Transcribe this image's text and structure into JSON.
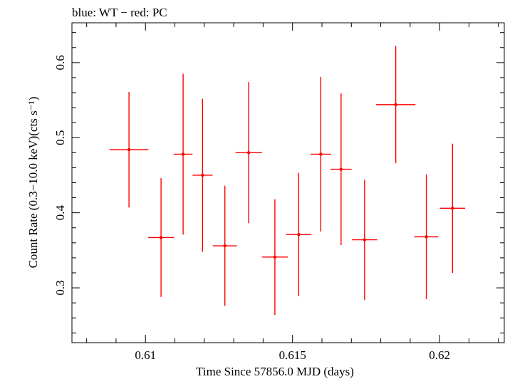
{
  "chart_data": {
    "type": "scatter",
    "title": "blue: WT − red: PC",
    "xlabel": "Time Since 57856.0 MJD (days)",
    "ylabel": "Count Rate (0.3−10.0 keV)(cts s⁻¹)",
    "xlim": [
      0.6075,
      0.6222
    ],
    "ylim": [
      0.227,
      0.653
    ],
    "x_ticks": [
      {
        "value": 0.61,
        "label": "0.61"
      },
      {
        "value": 0.615,
        "label": "0.615"
      },
      {
        "value": 0.62,
        "label": "0.62"
      }
    ],
    "y_ticks": [
      {
        "value": 0.3,
        "label": "0.3"
      },
      {
        "value": 0.4,
        "label": "0.4"
      },
      {
        "value": 0.5,
        "label": "0.5"
      },
      {
        "value": 0.6,
        "label": "0.6"
      }
    ],
    "grid": false,
    "series": [
      {
        "color": "#ff0000",
        "points": [
          {
            "x": 0.60944,
            "xerr": 0.00066,
            "y": 0.484,
            "yerr": 0.077
          },
          {
            "x": 0.61053,
            "xerr": 0.00044,
            "y": 0.367,
            "yerr": 0.079
          },
          {
            "x": 0.61128,
            "xerr": 0.00032,
            "y": 0.478,
            "yerr": 0.107
          },
          {
            "x": 0.61194,
            "xerr": 0.00034,
            "y": 0.45,
            "yerr": 0.102
          },
          {
            "x": 0.6127,
            "xerr": 0.00041,
            "y": 0.356,
            "yerr": 0.08
          },
          {
            "x": 0.61351,
            "xerr": 0.00045,
            "y": 0.48,
            "yerr": 0.094
          },
          {
            "x": 0.6144,
            "xerr": 0.00044,
            "y": 0.341,
            "yerr": 0.077
          },
          {
            "x": 0.61521,
            "xerr": 0.00043,
            "y": 0.371,
            "yerr": 0.082
          },
          {
            "x": 0.61596,
            "xerr": 0.00035,
            "y": 0.478,
            "yerr": 0.103
          },
          {
            "x": 0.61665,
            "xerr": 0.00036,
            "y": 0.458,
            "yerr": 0.101
          },
          {
            "x": 0.61745,
            "xerr": 0.00043,
            "y": 0.364,
            "yerr": 0.08
          },
          {
            "x": 0.61851,
            "xerr": 0.00067,
            "y": 0.544,
            "yerr": 0.078
          },
          {
            "x": 0.61955,
            "xerr": 0.00041,
            "y": 0.368,
            "yerr": 0.083
          },
          {
            "x": 0.62044,
            "xerr": 0.00043,
            "y": 0.406,
            "yerr": 0.086
          }
        ]
      }
    ]
  }
}
